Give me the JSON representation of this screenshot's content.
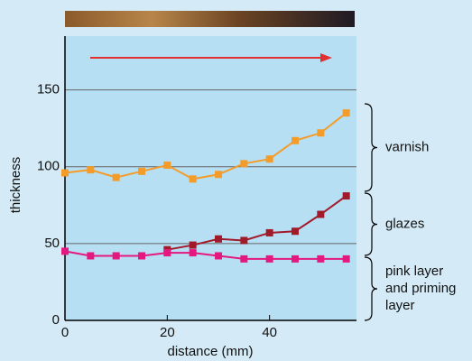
{
  "chart_data": {
    "type": "line",
    "x_label": "distance (mm)",
    "y_label": "thickness",
    "x": [
      0,
      5,
      10,
      15,
      20,
      25,
      30,
      35,
      40,
      45,
      50,
      55
    ],
    "series": [
      {
        "color": "#f39c2a",
        "values": [
          96,
          98,
          93,
          97,
          101,
          92,
          95,
          102,
          105,
          117,
          122,
          135
        ]
      },
      {
        "color": "#a11a2a",
        "values": [
          null,
          null,
          null,
          null,
          46,
          49,
          53,
          52,
          57,
          58,
          69,
          81
        ]
      },
      {
        "color": "#e4197f",
        "values": [
          45,
          42,
          42,
          42,
          44,
          44,
          42,
          40,
          40,
          40,
          40,
          40
        ]
      }
    ],
    "xlim": [
      0,
      57
    ],
    "xticks": [
      0,
      20,
      40
    ],
    "ylim": [
      0,
      185
    ],
    "yticks": [
      0,
      50,
      100,
      150
    ],
    "grid": true,
    "annotations": [
      [
        "varnish"
      ],
      [
        "glazes"
      ],
      [
        "pink layer",
        "and priming",
        "layer"
      ]
    ]
  }
}
